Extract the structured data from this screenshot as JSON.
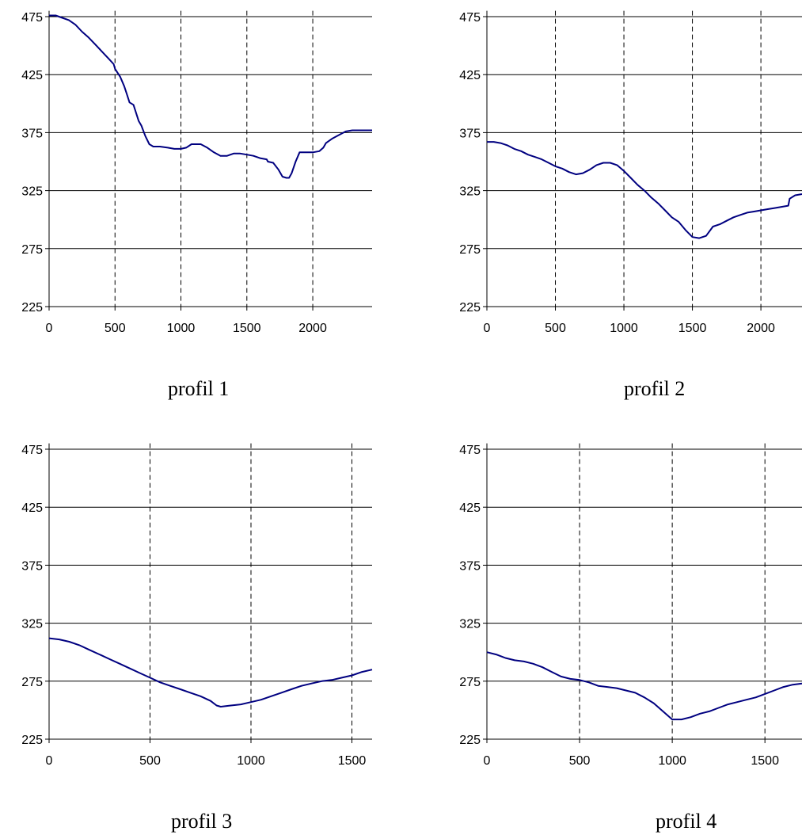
{
  "chart_data": [
    {
      "type": "line",
      "caption": "profil 1",
      "ylim": [
        225,
        480
      ],
      "xlim": [
        0,
        2450
      ],
      "yticks": [
        225,
        275,
        325,
        375,
        425,
        475
      ],
      "xticks": [
        0,
        500,
        1000,
        1500,
        2000
      ],
      "grid": {
        "horizontal": "solid",
        "vertical": "dashed"
      },
      "series": [
        {
          "color": "#000080",
          "x": [
            0,
            50,
            100,
            150,
            200,
            250,
            300,
            350,
            400,
            450,
            490,
            500,
            540,
            570,
            590,
            610,
            640,
            680,
            700,
            730,
            760,
            790,
            820,
            840,
            900,
            950,
            1000,
            1040,
            1080,
            1100,
            1120,
            1150,
            1200,
            1250,
            1300,
            1350,
            1400,
            1450,
            1500,
            1550,
            1600,
            1650,
            1660,
            1700,
            1740,
            1770,
            1800,
            1820,
            1840,
            1870,
            1900,
            1950,
            2000,
            2050,
            2080,
            2100,
            2150,
            2200,
            2250,
            2300,
            2350,
            2400,
            2450
          ],
          "y": [
            476,
            476,
            474,
            472,
            468,
            462,
            457,
            451,
            445,
            439,
            434,
            430,
            423,
            415,
            408,
            401,
            399,
            385,
            381,
            372,
            365,
            363,
            363,
            363,
            362,
            361,
            361,
            362,
            365,
            365,
            365,
            365,
            362,
            358,
            355,
            355,
            357,
            357,
            356,
            355,
            353,
            352,
            350,
            349,
            343,
            337,
            336,
            336,
            340,
            350,
            358,
            358,
            358,
            359,
            362,
            366,
            370,
            373,
            376,
            377,
            377,
            377,
            377
          ]
        }
      ]
    },
    {
      "type": "line",
      "caption": "profil 2",
      "ylim": [
        225,
        480
      ],
      "xlim": [
        0,
        2300
      ],
      "yticks": [
        225,
        275,
        325,
        375,
        425,
        475
      ],
      "xticks": [
        0,
        500,
        1000,
        1500,
        2000
      ],
      "grid": {
        "horizontal": "solid",
        "vertical": "dashed"
      },
      "series": [
        {
          "color": "#000080",
          "x": [
            0,
            50,
            100,
            150,
            200,
            250,
            300,
            350,
            400,
            450,
            500,
            550,
            600,
            650,
            700,
            750,
            800,
            850,
            900,
            950,
            1000,
            1050,
            1100,
            1150,
            1200,
            1250,
            1300,
            1350,
            1400,
            1450,
            1500,
            1550,
            1600,
            1650,
            1700,
            1750,
            1800,
            1850,
            1900,
            1950,
            2000,
            2050,
            2100,
            2150,
            2200,
            2210,
            2250,
            2300
          ],
          "y": [
            367,
            367,
            366,
            364,
            361,
            359,
            356,
            354,
            352,
            349,
            346,
            344,
            341,
            339,
            340,
            343,
            347,
            349,
            349,
            347,
            342,
            336,
            330,
            325,
            319,
            314,
            308,
            302,
            298,
            291,
            285,
            284,
            286,
            294,
            296,
            299,
            302,
            304,
            306,
            307,
            308,
            309,
            310,
            311,
            312,
            318,
            321,
            322
          ]
        }
      ]
    },
    {
      "type": "line",
      "caption": "profil 3",
      "ylim": [
        225,
        480
      ],
      "xlim": [
        0,
        1600
      ],
      "yticks": [
        225,
        275,
        325,
        375,
        425,
        475
      ],
      "xticks": [
        0,
        500,
        1000,
        1500
      ],
      "grid": {
        "horizontal": "solid",
        "vertical": "dashed"
      },
      "series": [
        {
          "color": "#000080",
          "x": [
            0,
            50,
            100,
            150,
            200,
            250,
            300,
            350,
            400,
            450,
            500,
            550,
            600,
            650,
            700,
            750,
            800,
            830,
            850,
            900,
            950,
            1000,
            1050,
            1100,
            1150,
            1200,
            1250,
            1300,
            1350,
            1400,
            1450,
            1500,
            1550,
            1600
          ],
          "y": [
            312,
            311,
            309,
            306,
            302,
            298,
            294,
            290,
            286,
            282,
            278,
            274,
            271,
            268,
            265,
            262,
            258,
            254,
            253,
            254,
            255,
            257,
            259,
            262,
            265,
            268,
            271,
            273,
            275,
            276,
            278,
            280,
            283,
            285
          ]
        }
      ]
    },
    {
      "type": "line",
      "caption": "profil 4",
      "ylim": [
        225,
        480
      ],
      "xlim": [
        0,
        1700
      ],
      "yticks": [
        225,
        275,
        325,
        375,
        425,
        475
      ],
      "xticks": [
        0,
        500,
        1000,
        1500
      ],
      "grid": {
        "horizontal": "solid",
        "vertical": "dashed"
      },
      "series": [
        {
          "color": "#000080",
          "x": [
            0,
            50,
            100,
            150,
            200,
            250,
            300,
            350,
            400,
            450,
            500,
            550,
            600,
            650,
            700,
            750,
            800,
            850,
            900,
            950,
            1000,
            1050,
            1100,
            1150,
            1200,
            1250,
            1300,
            1350,
            1400,
            1450,
            1500,
            1550,
            1600,
            1650,
            1700
          ],
          "y": [
            300,
            298,
            295,
            293,
            292,
            290,
            287,
            283,
            279,
            277,
            276,
            274,
            271,
            270,
            269,
            267,
            265,
            261,
            256,
            249,
            242,
            242,
            244,
            247,
            249,
            252,
            255,
            257,
            259,
            261,
            264,
            267,
            270,
            272,
            273
          ]
        }
      ]
    }
  ]
}
